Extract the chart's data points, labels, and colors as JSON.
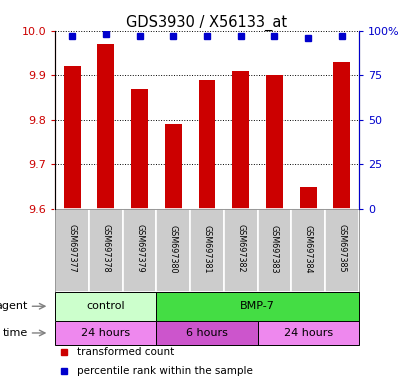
{
  "title": "GDS3930 / X56133_at",
  "samples": [
    "GSM697377",
    "GSM697378",
    "GSM697379",
    "GSM697380",
    "GSM697381",
    "GSM697382",
    "GSM697383",
    "GSM697384",
    "GSM697385"
  ],
  "red_values": [
    9.92,
    9.97,
    9.87,
    9.79,
    9.89,
    9.91,
    9.9,
    9.65,
    9.93
  ],
  "blue_values": [
    97,
    98,
    97,
    97,
    97,
    97,
    97,
    96,
    97
  ],
  "ylim_left": [
    9.6,
    10.0
  ],
  "ylim_right": [
    0,
    100
  ],
  "yticks_left": [
    9.6,
    9.7,
    9.8,
    9.9,
    10.0
  ],
  "yticks_right": [
    0,
    25,
    50,
    75,
    100
  ],
  "ytick_labels_right": [
    "0",
    "25",
    "50",
    "75",
    "100%"
  ],
  "bar_color": "#cc0000",
  "dot_color": "#0000cc",
  "agent_groups": [
    {
      "label": "control",
      "start": 0,
      "end": 3,
      "color": "#ccffcc"
    },
    {
      "label": "BMP-7",
      "start": 3,
      "end": 9,
      "color": "#44dd44"
    }
  ],
  "time_groups": [
    {
      "label": "24 hours",
      "start": 0,
      "end": 3,
      "color": "#ee88ee"
    },
    {
      "label": "6 hours",
      "start": 3,
      "end": 6,
      "color": "#cc55cc"
    },
    {
      "label": "24 hours",
      "start": 6,
      "end": 9,
      "color": "#ee88ee"
    }
  ],
  "legend_items": [
    {
      "color": "#cc0000",
      "label": "transformed count"
    },
    {
      "color": "#0000cc",
      "label": "percentile rank within the sample"
    }
  ],
  "tick_label_color_left": "#cc0000",
  "tick_label_color_right": "#0000cc",
  "sample_box_color": "#cccccc",
  "bar_width": 0.5,
  "n": 9,
  "xlim": [
    -0.5,
    8.5
  ]
}
